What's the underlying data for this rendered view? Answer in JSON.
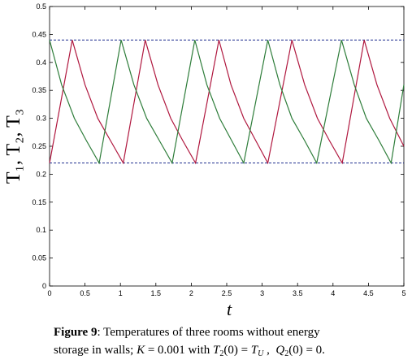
{
  "chart_data": {
    "type": "line",
    "xlabel": "t",
    "ylabel": "T₁, T₂, T₃",
    "xlim": [
      0,
      5
    ],
    "ylim": [
      0,
      0.5
    ],
    "xticks": [
      0,
      0.5,
      1,
      1.5,
      2,
      2.5,
      3,
      3.5,
      4,
      4.5,
      5
    ],
    "yticks": [
      0,
      0.05,
      0.1,
      0.15,
      0.2,
      0.25,
      0.3,
      0.35,
      0.4,
      0.45,
      0.5
    ],
    "hlines": [
      0.44,
      0.22
    ],
    "hline_color": "#1f2f8f",
    "series": [
      {
        "color": "#b0183f",
        "x": [
          0,
          0.32,
          0.5,
          0.68,
          0.86,
          1.04,
          1.35,
          1.53,
          1.71,
          1.88,
          2.06,
          2.39,
          2.56,
          2.74,
          2.91,
          3.08,
          3.42,
          3.6,
          3.78,
          3.95,
          4.13,
          4.44,
          4.62,
          4.8,
          5
        ],
        "values": [
          0.22,
          0.44,
          0.36,
          0.3,
          0.26,
          0.22,
          0.44,
          0.36,
          0.3,
          0.26,
          0.22,
          0.44,
          0.36,
          0.3,
          0.26,
          0.22,
          0.44,
          0.36,
          0.3,
          0.26,
          0.22,
          0.44,
          0.36,
          0.3,
          0.25
        ]
      },
      {
        "color": "#2e7d3a",
        "x": [
          0,
          0.17,
          0.35,
          0.52,
          0.7,
          1.01,
          1.19,
          1.37,
          1.55,
          1.73,
          2.05,
          2.22,
          2.4,
          2.57,
          2.74,
          3.08,
          3.25,
          3.42,
          3.6,
          3.77,
          4.12,
          4.3,
          4.47,
          4.65,
          4.82,
          5
        ],
        "values": [
          0.44,
          0.36,
          0.3,
          0.26,
          0.22,
          0.44,
          0.36,
          0.3,
          0.26,
          0.22,
          0.44,
          0.36,
          0.3,
          0.26,
          0.22,
          0.44,
          0.36,
          0.3,
          0.26,
          0.22,
          0.44,
          0.36,
          0.3,
          0.26,
          0.22,
          0.36
        ]
      }
    ],
    "caption": [
      [
        {
          "text": "Figure 9",
          "font": "bold"
        },
        {
          "text": ": Temperatures of three rooms without energy",
          "font": "normal"
        }
      ],
      [
        {
          "text": "storage in walls; ",
          "font": "normal"
        },
        {
          "text": "K",
          "font": "italic"
        },
        {
          "text": " = 0.001 with ",
          "font": "normal"
        },
        {
          "text": "T",
          "font": "italic"
        },
        {
          "text": "2",
          "font": "sub"
        },
        {
          "text": "(0) = ",
          "font": "normal"
        },
        {
          "text": "T",
          "font": "italic"
        },
        {
          "text": "U",
          "font": "italic-sub"
        },
        {
          "text": " ,  ",
          "font": "normal"
        },
        {
          "text": "Q",
          "font": "italic"
        },
        {
          "text": "2",
          "font": "sub"
        },
        {
          "text": "(0) = 0.",
          "font": "normal"
        }
      ]
    ]
  }
}
